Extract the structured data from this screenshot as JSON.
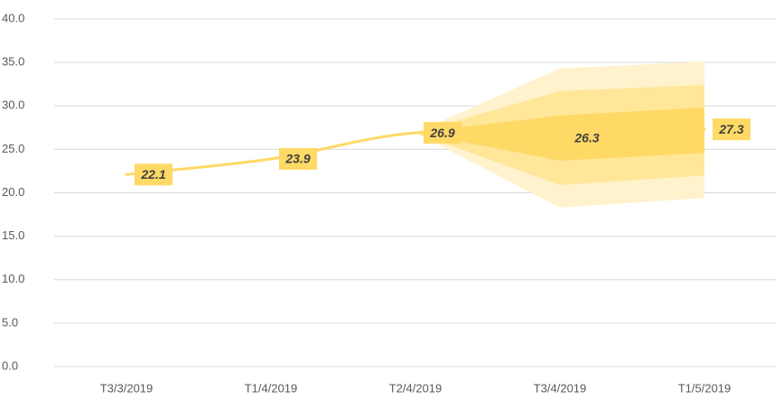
{
  "chart_data": {
    "type": "line",
    "categories": [
      "T3/3/2019",
      "T1/4/2019",
      "T2/4/2019",
      "T3/4/2019",
      "T1/5/2019"
    ],
    "series": [
      {
        "color": "#ffd966",
        "values": [
          22.1,
          23.9,
          26.9,
          26.3,
          27.3
        ]
      }
    ],
    "bands": [
      {
        "color": "#fff2cc",
        "lower": [
          null,
          null,
          26.9,
          18.3,
          19.4
        ],
        "upper": [
          null,
          null,
          26.9,
          34.3,
          35.1
        ]
      },
      {
        "color": "#ffe699",
        "lower": [
          null,
          null,
          26.9,
          20.9,
          22.0
        ],
        "upper": [
          null,
          null,
          26.9,
          31.7,
          32.4
        ]
      },
      {
        "color": "#ffd966",
        "lower": [
          null,
          null,
          26.9,
          23.7,
          24.6
        ],
        "upper": [
          null,
          null,
          26.9,
          28.9,
          29.8
        ]
      }
    ],
    "ylim": [
      0,
      40
    ],
    "yticks": [
      {
        "value": 0,
        "label": "0.0"
      },
      {
        "value": 5,
        "label": "5.0"
      },
      {
        "value": 10,
        "label": "10.0"
      },
      {
        "value": 15,
        "label": "15.0"
      },
      {
        "value": 20,
        "label": "20.0"
      },
      {
        "value": 25,
        "label": "25.0"
      },
      {
        "value": 30,
        "label": "30.0"
      },
      {
        "value": 35,
        "label": "35.0"
      },
      {
        "value": 40,
        "label": "40.0"
      }
    ],
    "grid": true
  }
}
